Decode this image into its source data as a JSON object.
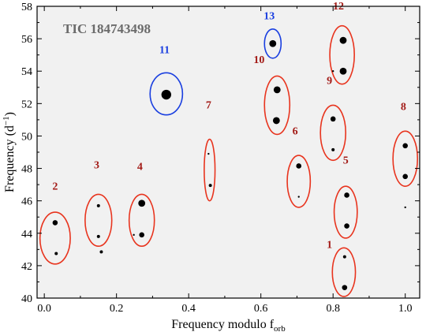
{
  "chart_data": {
    "type": "scatter",
    "annotation": "TIC 184743498",
    "xlabel": "Frequency modulo f",
    "xlabel_sub": "orb",
    "ylabel": "Frequency (d",
    "ylabel_sup": "−1",
    "ylabel_close": ")",
    "xlim": [
      -0.02,
      1.04
    ],
    "ylim": [
      40,
      58
    ],
    "xticks": [
      0.0,
      0.2,
      0.4,
      0.6,
      0.8,
      1.0
    ],
    "xtick_labels": [
      "0.0",
      "0.2",
      "0.4",
      "0.6",
      "0.8",
      "1.0"
    ],
    "yticks": [
      40,
      42,
      44,
      46,
      48,
      50,
      52,
      54,
      56,
      58
    ],
    "ytick_labels": [
      "40",
      "42",
      "44",
      "46",
      "48",
      "50",
      "52",
      "54",
      "56",
      "58"
    ],
    "background": "#f1f1f1",
    "grid": false,
    "colors": {
      "group_red": "#a31c18",
      "ellipse_red": "#e8341e",
      "group_blue": "#1a3fe0",
      "ellipse_blue": "#1a3fe0",
      "annotation": "#6b6b6b"
    },
    "groups": [
      {
        "label": "1",
        "color": "red",
        "center": [
          0.83,
          41.6
        ],
        "half_width": 0.032,
        "half_height": 1.5,
        "label_at": [
          0.79,
          43.1
        ]
      },
      {
        "label": "2",
        "color": "red",
        "center": [
          0.03,
          43.7
        ],
        "half_width": 0.042,
        "half_height": 1.6,
        "label_at": [
          0.03,
          46.7
        ]
      },
      {
        "label": "3",
        "color": "red",
        "center": [
          0.15,
          44.8
        ],
        "half_width": 0.037,
        "half_height": 1.6,
        "label_at": [
          0.145,
          48.0
        ]
      },
      {
        "label": "4",
        "color": "red",
        "center": [
          0.27,
          44.8
        ],
        "half_width": 0.035,
        "half_height": 1.6,
        "label_at": [
          0.265,
          47.9
        ]
      },
      {
        "label": "5",
        "color": "red",
        "center": [
          0.835,
          45.3
        ],
        "half_width": 0.032,
        "half_height": 1.6,
        "label_at": [
          0.835,
          48.3
        ]
      },
      {
        "label": "6",
        "color": "red",
        "center": [
          0.705,
          47.2
        ],
        "half_width": 0.032,
        "half_height": 1.6,
        "label_at": [
          0.695,
          50.1
        ]
      },
      {
        "label": "7",
        "color": "red",
        "center": [
          0.458,
          47.9
        ],
        "half_width": 0.015,
        "half_height": 1.9,
        "label_at": [
          0.455,
          51.7
        ]
      },
      {
        "label": "8",
        "color": "red",
        "center": [
          1.0,
          48.6
        ],
        "half_width": 0.034,
        "half_height": 1.7,
        "label_at": [
          0.995,
          51.6
        ]
      },
      {
        "label": "9",
        "color": "red",
        "center": [
          0.8,
          50.2
        ],
        "half_width": 0.035,
        "half_height": 1.7,
        "label_at": [
          0.79,
          53.2
        ]
      },
      {
        "label": "10",
        "color": "red",
        "center": [
          0.645,
          51.9
        ],
        "half_width": 0.035,
        "half_height": 1.8,
        "label_at": [
          0.595,
          54.5
        ]
      },
      {
        "label": "11",
        "color": "blue",
        "center": [
          0.338,
          52.6
        ],
        "half_width": 0.045,
        "half_height": 1.3,
        "label_at": [
          0.333,
          55.1
        ]
      },
      {
        "label": "12",
        "color": "red",
        "center": [
          0.825,
          55.0
        ],
        "half_width": 0.034,
        "half_height": 1.8,
        "label_at": [
          0.815,
          57.8
        ]
      },
      {
        "label": "13",
        "color": "blue",
        "center": [
          0.633,
          55.7
        ],
        "half_width": 0.023,
        "half_height": 0.9,
        "label_at": [
          0.623,
          57.2
        ]
      }
    ],
    "points": [
      {
        "x": 0.832,
        "y": 42.55,
        "size": "xs"
      },
      {
        "x": 0.832,
        "y": 40.65,
        "size": "small"
      },
      {
        "x": 0.03,
        "y": 44.65,
        "size": "small"
      },
      {
        "x": 0.033,
        "y": 42.75,
        "size": "xs"
      },
      {
        "x": 0.15,
        "y": 45.7,
        "size": "xs"
      },
      {
        "x": 0.15,
        "y": 43.8,
        "size": "xs"
      },
      {
        "x": 0.158,
        "y": 42.85,
        "size": "xs"
      },
      {
        "x": 0.27,
        "y": 45.85,
        "size": "medium"
      },
      {
        "x": 0.27,
        "y": 43.9,
        "size": "small"
      },
      {
        "x": 0.248,
        "y": 43.9,
        "size": "xxs"
      },
      {
        "x": 0.838,
        "y": 46.35,
        "size": "small"
      },
      {
        "x": 0.838,
        "y": 44.45,
        "size": "small"
      },
      {
        "x": 0.705,
        "y": 48.15,
        "size": "small"
      },
      {
        "x": 0.705,
        "y": 46.25,
        "size": "xxs"
      },
      {
        "x": 0.455,
        "y": 48.9,
        "size": "xxs"
      },
      {
        "x": 0.46,
        "y": 46.95,
        "size": "xs"
      },
      {
        "x": 1.0,
        "y": 49.4,
        "size": "small"
      },
      {
        "x": 1.0,
        "y": 47.5,
        "size": "small"
      },
      {
        "x": 1.0,
        "y": 45.6,
        "size": "xxs"
      },
      {
        "x": 0.8,
        "y": 51.05,
        "size": "small"
      },
      {
        "x": 0.8,
        "y": 49.15,
        "size": "xs"
      },
      {
        "x": 0.645,
        "y": 52.85,
        "size": "medium"
      },
      {
        "x": 0.643,
        "y": 50.95,
        "size": "medium"
      },
      {
        "x": 0.338,
        "y": 52.55,
        "size": "large"
      },
      {
        "x": 0.828,
        "y": 55.9,
        "size": "medium"
      },
      {
        "x": 0.828,
        "y": 54.0,
        "size": "medium"
      },
      {
        "x": 0.8,
        "y": 54.0,
        "size": "xxs"
      },
      {
        "x": 0.633,
        "y": 55.7,
        "size": "medium"
      }
    ]
  }
}
